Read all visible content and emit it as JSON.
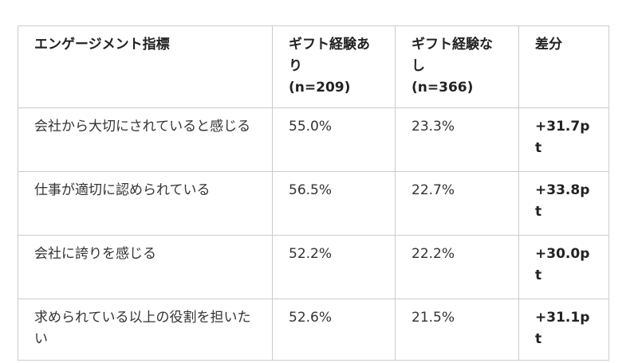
{
  "colors": {
    "background": "#ffffff",
    "border": "#cccccc",
    "text": "#333333",
    "bold_text": "#222222"
  },
  "table": {
    "columns": [
      {
        "id": "metric",
        "line1": "エンゲージメント指標",
        "line2": ""
      },
      {
        "id": "with_gift",
        "line1": "ギフト経験あり",
        "line2": "(n=209)"
      },
      {
        "id": "without_gift",
        "line1": "ギフト経験なし",
        "line2": "(n=366)"
      },
      {
        "id": "diff",
        "line1": "差分",
        "line2": ""
      }
    ],
    "rows": [
      {
        "metric": "会社から大切にされていると感じる",
        "with_gift": "55.0%",
        "without_gift": "23.3%",
        "diff": "+31.7pt"
      },
      {
        "metric": "仕事が適切に認められている",
        "with_gift": "56.5%",
        "without_gift": "22.7%",
        "diff": "+33.8pt"
      },
      {
        "metric": "会社に誇りを感じる",
        "with_gift": "52.2%",
        "without_gift": "22.2%",
        "diff": "+30.0pt"
      },
      {
        "metric": "求められている以上の役割を担いたい",
        "with_gift": "52.6%",
        "without_gift": "21.5%",
        "diff": "+31.1pt"
      }
    ]
  }
}
